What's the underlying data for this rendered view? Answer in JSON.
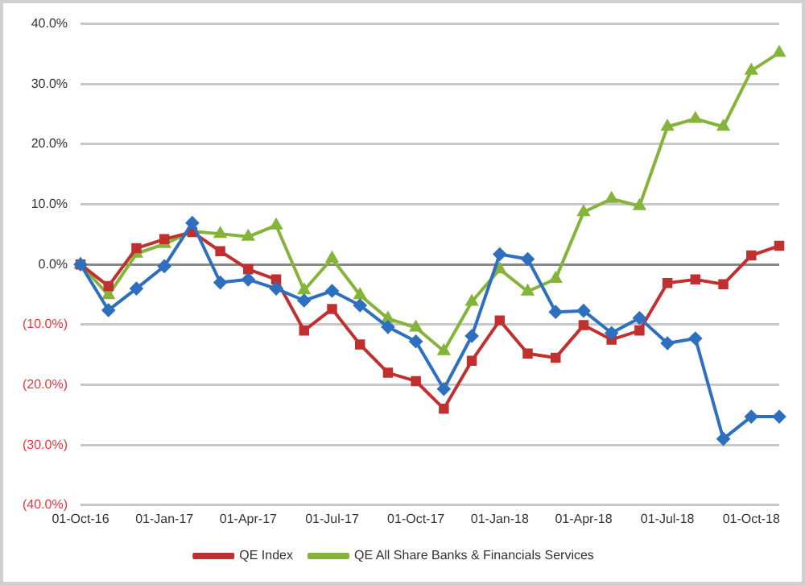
{
  "chart_data": {
    "type": "line",
    "categories": [
      "01-Oct-16",
      null,
      null,
      "01-Jan-17",
      null,
      null,
      "01-Apr-17",
      null,
      null,
      "01-Jul-17",
      null,
      null,
      "01-Oct-17",
      null,
      null,
      "01-Jan-18",
      null,
      null,
      "01-Apr-18",
      null,
      null,
      "01-Jul-18",
      null,
      null,
      "01-Oct-18",
      null
    ],
    "series": [
      {
        "color": "#2e6fbf",
        "marker": "diamond",
        "values": [
          0,
          -7.6,
          -4.0,
          -0.3,
          6.9,
          -3.0,
          -2.5,
          -4.0,
          -6.0,
          -4.4,
          -6.8,
          -10.4,
          -12.8,
          -20.7,
          -11.9,
          1.7,
          0.9,
          -7.9,
          -7.7,
          -11.4,
          -8.9,
          -13.1,
          -12.3,
          -29.0,
          -25.3,
          -25.3
        ]
      },
      {
        "name": "QE Index",
        "color": "#c0302e",
        "marker": "square",
        "values": [
          0,
          -3.6,
          2.7,
          4.2,
          5.4,
          2.2,
          -0.8,
          -2.5,
          -11.0,
          -7.4,
          -13.3,
          -18.0,
          -19.4,
          -24.0,
          -16.0,
          -9.3,
          -14.8,
          -15.5,
          -10.1,
          -12.5,
          -11.0,
          -3.1,
          -2.5,
          -3.3,
          1.5,
          3.1
        ]
      },
      {
        "name": "QE All Share Banks & Financials Services",
        "color": "#86b43a",
        "marker": "triangle",
        "values": [
          0,
          -5.1,
          1.8,
          3.4,
          5.5,
          5.1,
          4.6,
          6.5,
          -4.3,
          1.0,
          -5.1,
          -9.0,
          -10.5,
          -14.4,
          -6.2,
          -0.8,
          -4.5,
          -2.4,
          8.7,
          10.9,
          9.7,
          22.9,
          24.2,
          22.9,
          32.2,
          35.2
        ]
      }
    ],
    "ylim": [
      -40,
      40
    ],
    "yticks": [
      {
        "value": -40,
        "label": "(40.0%)"
      },
      {
        "value": -30,
        "label": "(30.0%)"
      },
      {
        "value": -20,
        "label": "(20.0%)"
      },
      {
        "value": -10,
        "label": "(10.0%)"
      },
      {
        "value": 0,
        "label": "0.0%"
      },
      {
        "value": 10,
        "label": "10.0%"
      },
      {
        "value": 20,
        "label": "20.0%"
      },
      {
        "value": 30,
        "label": "30.0%"
      },
      {
        "value": 40,
        "label": "40.0%"
      }
    ],
    "grid": "y",
    "legend": "bottom",
    "line_style": "solid"
  }
}
